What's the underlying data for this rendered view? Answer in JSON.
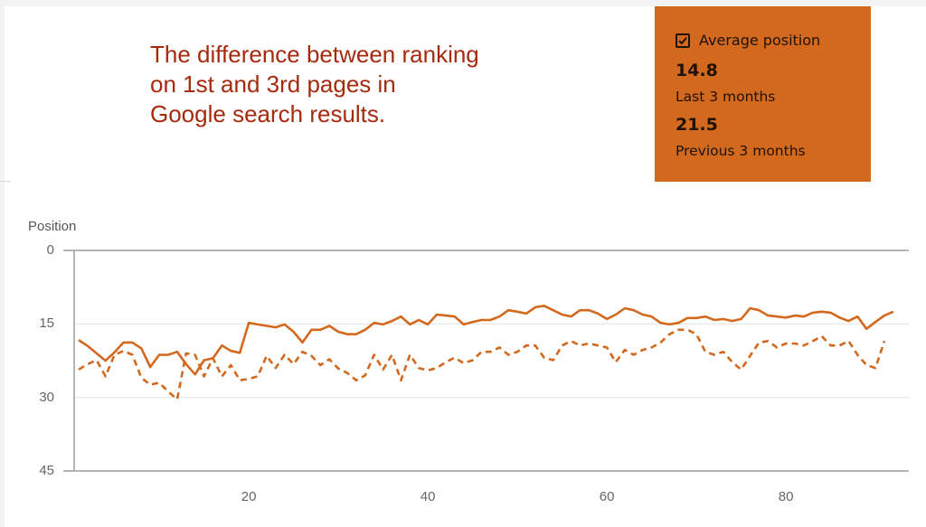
{
  "annotation": {
    "lines": [
      "The difference between ranking",
      "on 1st and 3rd pages in",
      "Google search results."
    ],
    "color": "#a52a0e"
  },
  "card": {
    "background": "#d2691e",
    "checkbox_checked": true,
    "title": "Average position",
    "metrics": [
      {
        "value": "14.8",
        "label": "Last 3 months",
        "line_style": "solid"
      },
      {
        "value": "21.5",
        "label": "Previous 3 months",
        "line_style": "dashed"
      }
    ],
    "help_icon": "?"
  },
  "chart_data": {
    "type": "line",
    "title": "",
    "xlabel": "",
    "ylabel": "Position",
    "ylim": [
      45,
      0
    ],
    "y_inverted": true,
    "yticks": [
      0,
      15,
      30,
      45
    ],
    "xticks": [
      20,
      40,
      60,
      80
    ],
    "xlim": [
      1,
      93
    ],
    "grid": true,
    "legend": "card",
    "line_color": "#d2691e",
    "series": [
      {
        "name": "Last 3 months",
        "style": "solid",
        "average": 14.8,
        "values": [
          18.3,
          19.5,
          21,
          22.5,
          20.8,
          18.8,
          18.8,
          20,
          23.8,
          21.3,
          21.3,
          20.7,
          23.2,
          25.3,
          22.4,
          22,
          19.4,
          20.5,
          20.9,
          14.8,
          15.1,
          15.4,
          15.7,
          15.1,
          16.6,
          18.8,
          16.2,
          16.2,
          15.4,
          16.6,
          17.1,
          17.1,
          16.2,
          14.8,
          15.1,
          14.4,
          13.5,
          15.1,
          14.2,
          15.1,
          13.1,
          13.3,
          13.5,
          15.1,
          14.6,
          14.2,
          14.2,
          13.5,
          12.2,
          12.5,
          12.9,
          11.6,
          11.3,
          12.2,
          13.1,
          13.5,
          12.2,
          12.2,
          12.9,
          14,
          13.1,
          11.8,
          12.2,
          13.1,
          13.5,
          14.8,
          15.1,
          14.8,
          13.8,
          13.8,
          13.5,
          14.2,
          14,
          14.4,
          14,
          11.8,
          12.2,
          13.3,
          13.5,
          13.7,
          13.3,
          13.5,
          12.7,
          12.5,
          12.7,
          13.7,
          14.4,
          13.5,
          16,
          14.6,
          13.3,
          12.5
        ]
      },
      {
        "name": "Previous 3 months",
        "style": "dashed",
        "average": 21.5,
        "values": [
          24.3,
          23.2,
          22.4,
          25.7,
          21.3,
          20.5,
          21.3,
          26,
          27.4,
          27,
          28.8,
          30.4,
          21,
          21.3,
          25.7,
          22,
          25.7,
          23.4,
          26.5,
          26.2,
          25.7,
          21.5,
          24,
          21.3,
          23.2,
          20.7,
          21.5,
          23.4,
          22.2,
          24.1,
          25,
          26.5,
          25.5,
          21.3,
          24.3,
          21.3,
          26.5,
          21.3,
          24,
          24.5,
          24,
          22.8,
          21.9,
          23,
          22.4,
          20.7,
          20.7,
          19.8,
          21.3,
          20.7,
          19.4,
          19.4,
          21.9,
          22.4,
          19.4,
          18.5,
          19.4,
          19,
          19.4,
          19.8,
          22.8,
          20.3,
          21.3,
          20.3,
          19.8,
          18.8,
          17.1,
          16.2,
          16.2,
          17.1,
          20.7,
          21.3,
          20.7,
          22.8,
          24.3,
          21.5,
          18.8,
          18.5,
          19.8,
          19,
          19,
          19.4,
          18.5,
          17.5,
          19.4,
          19.4,
          18.5,
          21.3,
          23.4,
          24,
          18.5
        ]
      }
    ]
  }
}
